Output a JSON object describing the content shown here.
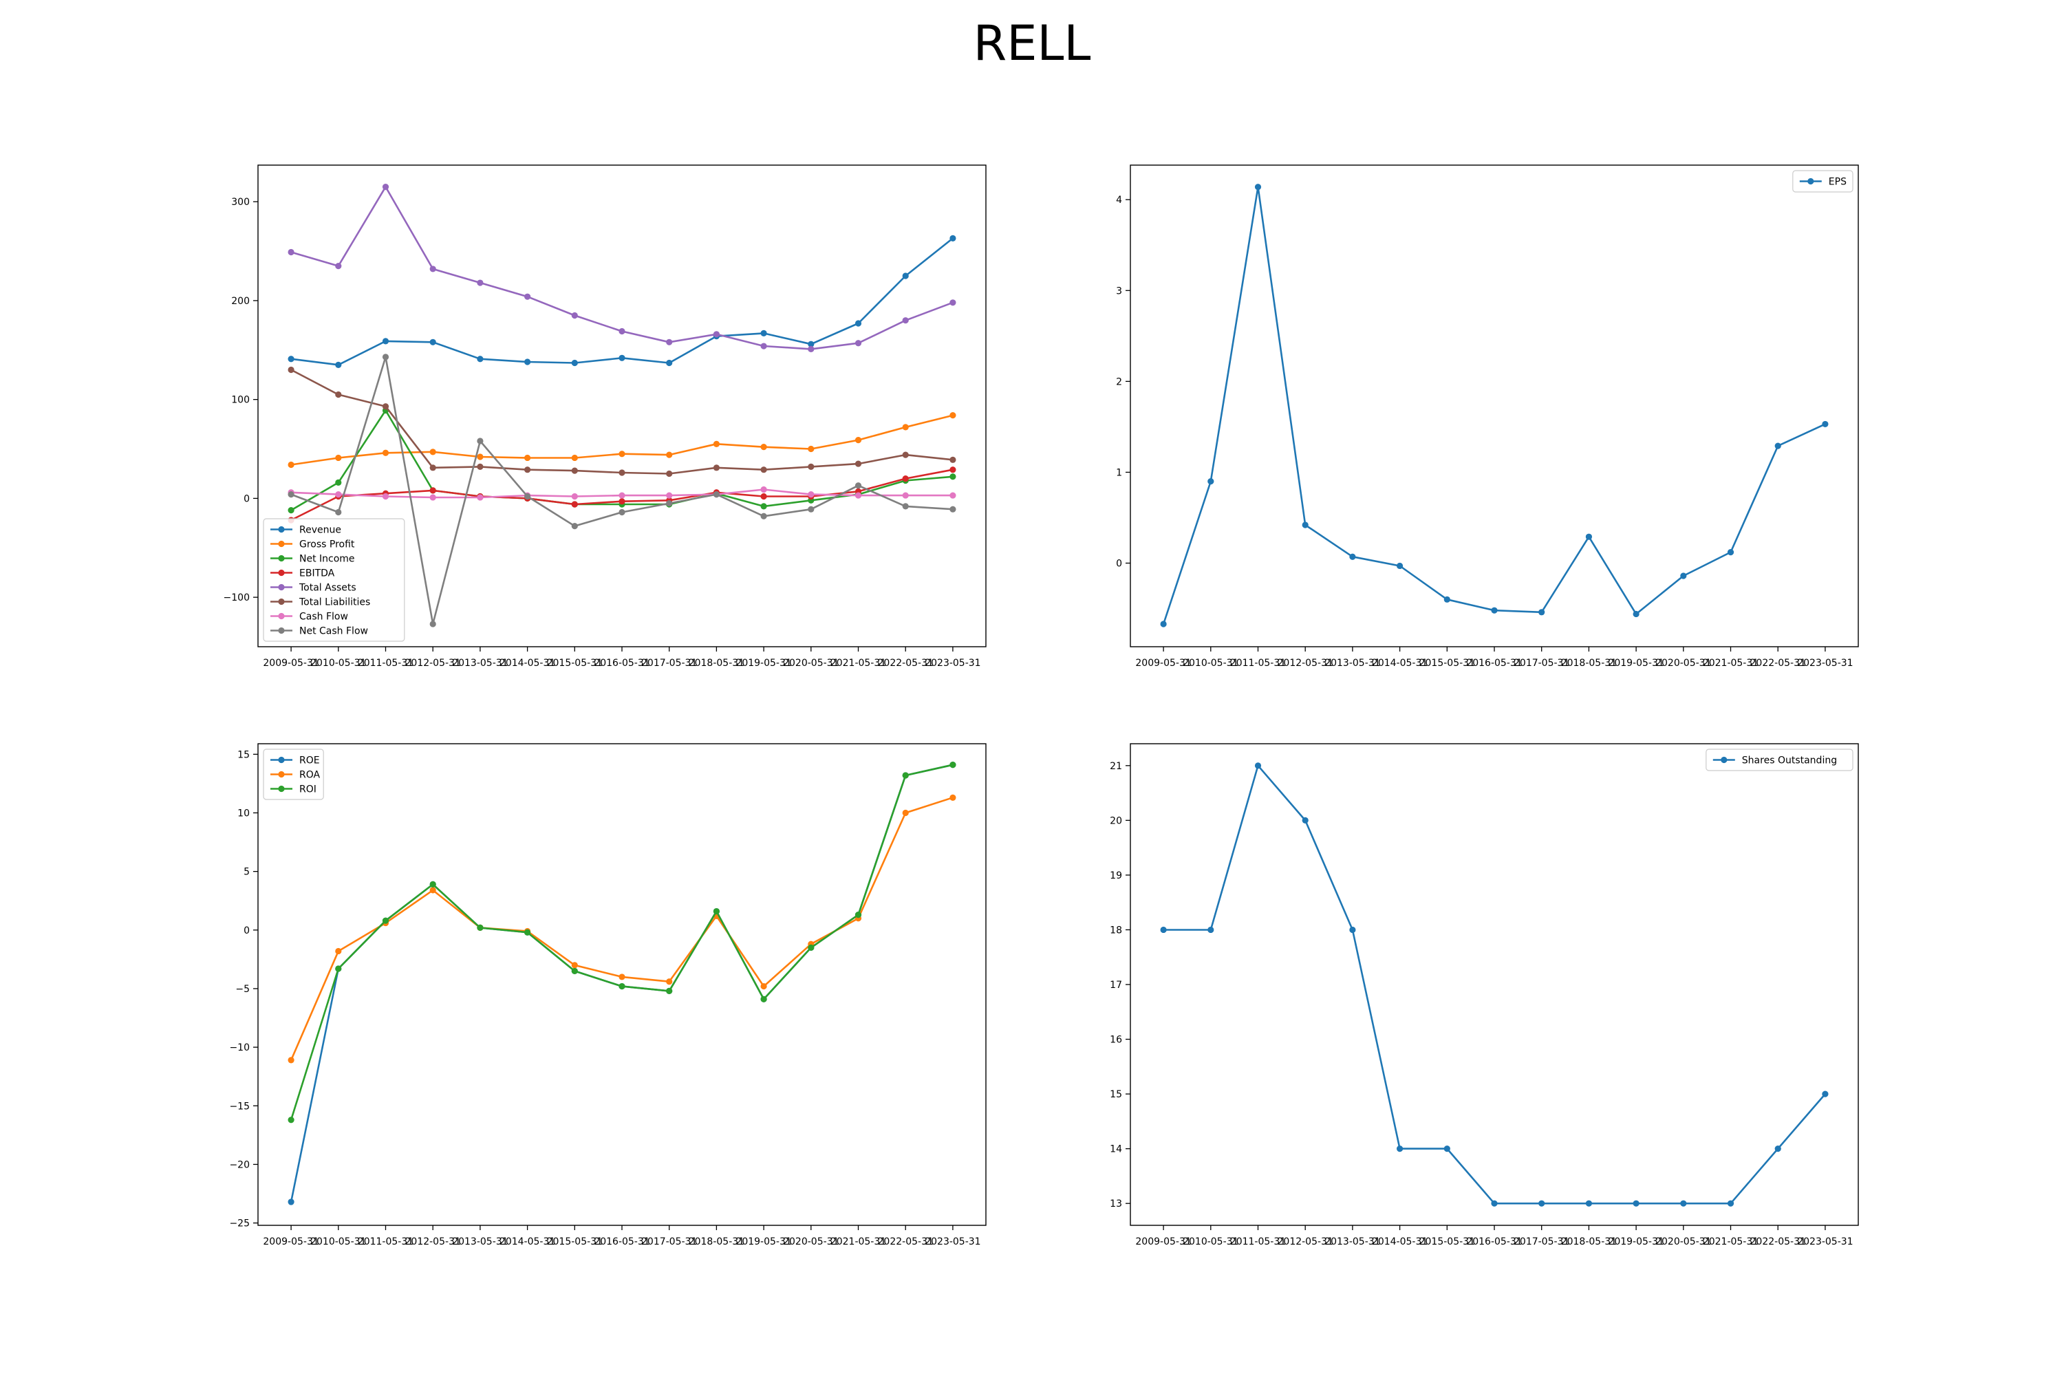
{
  "figure_title": "RELL",
  "colors": {
    "tab_blue": "#1f77b4",
    "tab_orange": "#ff7f0e",
    "tab_green": "#2ca02c",
    "tab_red": "#d62728",
    "tab_purple": "#9467bd",
    "tab_brown": "#8c564b",
    "tab_pink": "#e377c2",
    "tab_gray": "#7f7f7f"
  },
  "chart_data": [
    {
      "type": "line",
      "title": "",
      "xlabel": "",
      "ylabel": "",
      "x": [
        "2009-05-31",
        "2010-05-31",
        "2011-05-31",
        "2012-05-31",
        "2013-05-31",
        "2014-05-31",
        "2015-05-31",
        "2016-05-31",
        "2017-05-31",
        "2018-05-31",
        "2019-05-31",
        "2020-05-31",
        "2021-05-31",
        "2022-05-31",
        "2023-05-31"
      ],
      "ylim": [
        -150,
        337
      ],
      "yticks": [
        -100,
        0,
        100,
        200,
        300
      ],
      "legend": "lower-left",
      "grid": false,
      "series": [
        {
          "name": "Revenue",
          "color": "#1f77b4",
          "values": [
            141,
            135,
            159,
            158,
            141,
            138,
            137,
            142,
            137,
            164,
            167,
            156,
            177,
            225,
            263
          ]
        },
        {
          "name": "Gross Profit",
          "color": "#ff7f0e",
          "values": [
            34,
            41,
            46,
            47,
            42,
            41,
            41,
            45,
            44,
            55,
            52,
            50,
            59,
            72,
            84
          ]
        },
        {
          "name": "Net Income",
          "color": "#2ca02c",
          "values": [
            -12,
            16,
            89,
            8,
            2,
            0,
            -6,
            -6,
            -6,
            5,
            -8,
            -2,
            4,
            18,
            22
          ]
        },
        {
          "name": "EBITDA",
          "color": "#d62728",
          "values": [
            -22,
            2,
            5,
            8,
            2,
            0,
            -6,
            -3,
            -2,
            6,
            2,
            2,
            7,
            20,
            29
          ]
        },
        {
          "name": "Total Assets",
          "color": "#9467bd",
          "values": [
            249,
            235,
            315,
            232,
            218,
            204,
            185,
            169,
            158,
            166,
            154,
            151,
            157,
            180,
            198
          ]
        },
        {
          "name": "Total Liabilities",
          "color": "#8c564b",
          "values": [
            130,
            105,
            93,
            31,
            32,
            29,
            28,
            26,
            25,
            31,
            29,
            32,
            35,
            44,
            39
          ]
        },
        {
          "name": "Cash Flow",
          "color": "#e377c2",
          "values": [
            6,
            4,
            2,
            1,
            1,
            3,
            2,
            3,
            3,
            4,
            9,
            4,
            3,
            3,
            3
          ]
        },
        {
          "name": "Net Cash Flow",
          "color": "#7f7f7f",
          "values": [
            4,
            -14,
            143,
            -127,
            58,
            2,
            -28,
            -14,
            -5,
            4,
            -18,
            -11,
            13,
            -8,
            -11
          ]
        }
      ]
    },
    {
      "type": "line",
      "title": "",
      "xlabel": "",
      "ylabel": "",
      "x": [
        "2009-05-31",
        "2010-05-31",
        "2011-05-31",
        "2012-05-31",
        "2013-05-31",
        "2014-05-31",
        "2015-05-31",
        "2016-05-31",
        "2017-05-31",
        "2018-05-31",
        "2019-05-31",
        "2020-05-31",
        "2021-05-31",
        "2022-05-31",
        "2023-05-31"
      ],
      "ylim": [
        -0.92,
        4.38
      ],
      "yticks": [
        0,
        1,
        2,
        3,
        4
      ],
      "legend": "upper-right",
      "grid": false,
      "series": [
        {
          "name": "EPS",
          "color": "#1f77b4",
          "values": [
            -0.67,
            0.9,
            4.14,
            0.42,
            0.07,
            -0.03,
            -0.4,
            -0.52,
            -0.54,
            0.29,
            -0.56,
            -0.14,
            0.12,
            1.29,
            1.53
          ]
        }
      ]
    },
    {
      "type": "line",
      "title": "",
      "xlabel": "",
      "ylabel": "",
      "x": [
        "2009-05-31",
        "2010-05-31",
        "2011-05-31",
        "2012-05-31",
        "2013-05-31",
        "2014-05-31",
        "2015-05-31",
        "2016-05-31",
        "2017-05-31",
        "2018-05-31",
        "2019-05-31",
        "2020-05-31",
        "2021-05-31",
        "2022-05-31",
        "2023-05-31"
      ],
      "ylim": [
        -25.2,
        15.9
      ],
      "yticks": [
        -25,
        -20,
        -15,
        -10,
        -5,
        0,
        5,
        10,
        15
      ],
      "legend": "upper-left",
      "grid": false,
      "series": [
        {
          "name": "ROE",
          "color": "#1f77b4",
          "values": [
            -23.2,
            -3.3,
            0.8,
            3.9,
            0.2,
            -0.2,
            -3.5,
            -4.8,
            -5.2,
            1.6,
            -5.9,
            -1.5,
            1.3,
            13.2,
            14.1
          ]
        },
        {
          "name": "ROA",
          "color": "#ff7f0e",
          "values": [
            -11.1,
            -1.8,
            0.6,
            3.4,
            0.2,
            -0.1,
            -3.0,
            -4.0,
            -4.4,
            1.2,
            -4.8,
            -1.2,
            1.0,
            10.0,
            11.3
          ]
        },
        {
          "name": "ROI",
          "color": "#2ca02c",
          "values": [
            -16.2,
            -3.3,
            0.8,
            3.9,
            0.2,
            -0.2,
            -3.5,
            -4.8,
            -5.2,
            1.6,
            -5.9,
            -1.5,
            1.3,
            13.2,
            14.1
          ]
        }
      ]
    },
    {
      "type": "line",
      "title": "",
      "xlabel": "",
      "ylabel": "",
      "x": [
        "2009-05-31",
        "2010-05-31",
        "2011-05-31",
        "2012-05-31",
        "2013-05-31",
        "2014-05-31",
        "2015-05-31",
        "2016-05-31",
        "2017-05-31",
        "2018-05-31",
        "2019-05-31",
        "2020-05-31",
        "2021-05-31",
        "2022-05-31",
        "2023-05-31"
      ],
      "ylim": [
        12.6,
        21.4
      ],
      "yticks": [
        13,
        14,
        15,
        16,
        17,
        18,
        19,
        20,
        21
      ],
      "legend": "upper-right",
      "grid": false,
      "series": [
        {
          "name": "Shares Outstanding",
          "color": "#1f77b4",
          "values": [
            18,
            18,
            21,
            20,
            18,
            14,
            14,
            13,
            13,
            13,
            13,
            13,
            13,
            14,
            15
          ]
        }
      ]
    }
  ]
}
